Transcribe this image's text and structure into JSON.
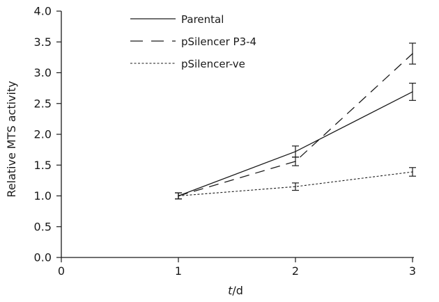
{
  "chart_data": {
    "type": "line",
    "title": "",
    "xlabel_italic": "t",
    "xlabel_rest": "/d",
    "ylabel": "Relative MTS activity",
    "xlim": [
      0,
      3
    ],
    "ylim": [
      0,
      4
    ],
    "x_ticks": [
      "0",
      "1",
      "2",
      "3"
    ],
    "y_ticks": [
      "0.0",
      "0.5",
      "1.0",
      "1.5",
      "2.0",
      "2.5",
      "3.0",
      "3.5",
      "4.0"
    ],
    "x": [
      1,
      2,
      3
    ],
    "grid": false,
    "legend_position": "top-left",
    "series": [
      {
        "name": "Parental",
        "style": "solid",
        "values": [
          1.0,
          1.72,
          2.69
        ],
        "errors": [
          0.05,
          0.09,
          0.14
        ]
      },
      {
        "name": "pSilencer P3-4",
        "style": "dashed",
        "values": [
          1.0,
          1.56,
          3.31
        ],
        "errors": [
          0.05,
          0.07,
          0.17
        ]
      },
      {
        "name": "pSilencer-ve",
        "style": "dotted",
        "values": [
          1.0,
          1.15,
          1.39
        ],
        "errors": [
          0.05,
          0.06,
          0.07
        ]
      }
    ]
  }
}
